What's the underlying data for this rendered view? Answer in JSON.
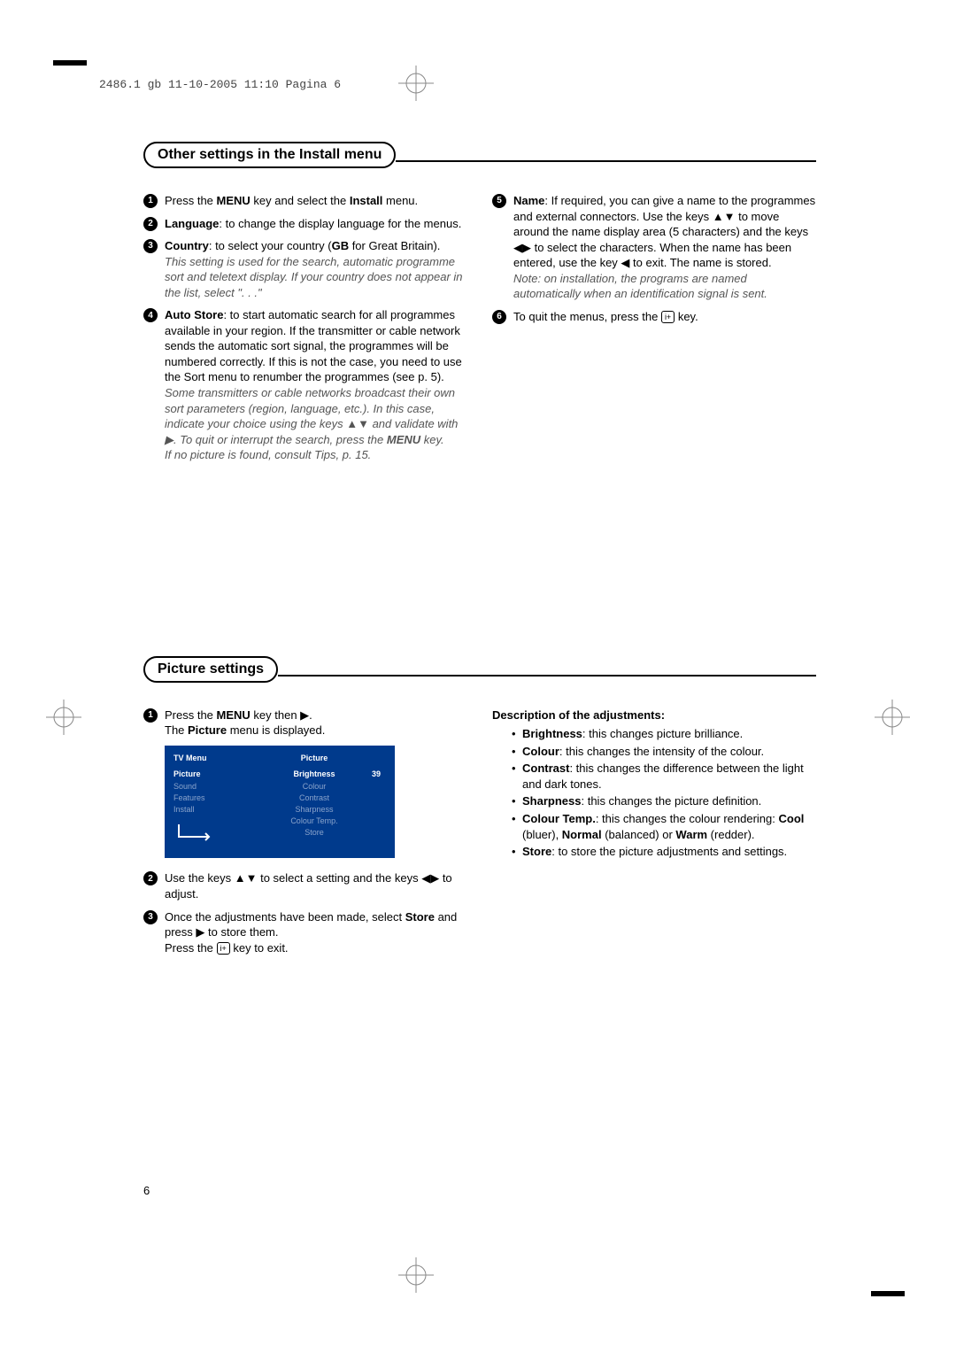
{
  "header": "2486.1 gb  11-10-2005  11:10  Pagina 6",
  "page_number": "6",
  "section1": {
    "title": "Other settings in the Install menu",
    "left_steps": [
      {
        "num": "1",
        "html": "Press the <b>MENU</b> key and select the <b>Install</b> menu."
      },
      {
        "num": "2",
        "html": "<b>Language</b>: to change the display language for the menus."
      },
      {
        "num": "3",
        "html": "<b>Country</b>: to select your country (<b>GB</b> for Great Britain).",
        "note": "This setting is used for the search, automatic programme sort and teletext display. If your country does not appear in the list, select \". . .\""
      },
      {
        "num": "4",
        "html": "<b>Auto Store</b>: to start automatic search for all programmes available in your region. If the transmitter or cable network sends the automatic sort signal, the programmes will be numbered correctly. If this is not the case, you need to use the Sort menu to renumber the programmes (see p. 5).",
        "note": "Some transmitters or cable networks broadcast their own sort parameters (region, language, etc.). In this case, indicate your choice using the keys ▲▼ and validate with ▶. To quit or interrupt the search, press the <b>MENU</b> key.",
        "note2": "If no picture is found, consult Tips, p. 15."
      }
    ],
    "right_steps": [
      {
        "num": "5",
        "html": "<b>Name</b>: If required, you can give a name to the programmes and external connectors. Use the keys ▲▼ to move around the name display area (5 characters) and the keys ◀▶ to select the characters. When the name has been entered, use the key ◀ to exit. The name is stored.",
        "note": "Note: on installation, the programs are named automatically when an identification signal is sent."
      },
      {
        "num": "6",
        "html": "To quit the menus, press the <span class=\"info-key\">i+</span> key."
      }
    ]
  },
  "section2": {
    "title": "Picture settings",
    "left_steps": [
      {
        "num": "1",
        "html": "Press the <b>MENU</b> key then ▶.<br>The <b>Picture</b> menu is displayed."
      },
      {
        "num": "2",
        "html": "Use the keys ▲▼ to select a setting and the keys ◀▶ to adjust."
      },
      {
        "num": "3",
        "html": "Once the adjustments have been made, select <b>Store</b> and press ▶ to store them.<br>Press the <span class=\"info-key\">i+</span> key to exit."
      }
    ],
    "tv_menu": {
      "left_title": "TV Menu",
      "left_items": [
        "Picture",
        "Sound",
        "Features",
        "Install"
      ],
      "left_selected": 0,
      "right_title": "Picture",
      "right_items": [
        "Brightness",
        "Colour",
        "Contrast",
        "Sharpness",
        "Colour Temp.",
        "Store"
      ],
      "right_selected": 0,
      "value": "39",
      "bg": "#003a8c",
      "dim_color": "#8aa4cc"
    },
    "desc_title": "Description of the adjustments:",
    "bullets": [
      "<b>Brightness</b>: this changes picture brilliance.",
      "<b>Colour</b>: this changes the intensity of the colour.",
      "<b>Contrast</b>: this changes the difference between the light and dark tones.",
      "<b>Sharpness</b>: this changes the picture definition.",
      "<b>Colour Temp.</b>: this changes the colour rendering: <b>Cool</b> (bluer), <b>Normal</b> (balanced) or <b>Warm</b> (redder).",
      "<b>Store</b>: to store the picture adjustments and settings."
    ]
  }
}
